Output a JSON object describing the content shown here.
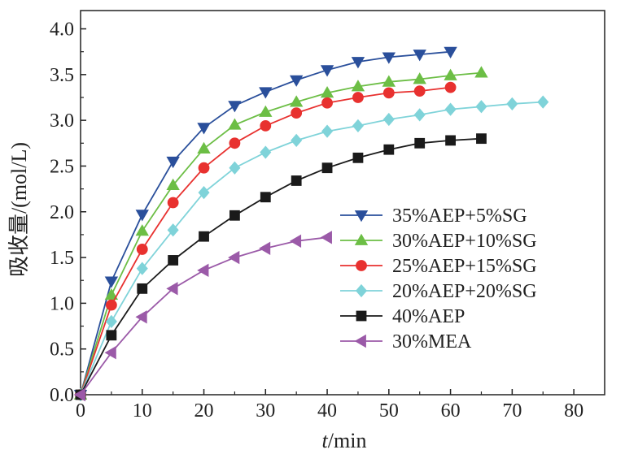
{
  "chart_data": {
    "type": "line",
    "xlabel_italic": "t",
    "xlabel_unit": "/min",
    "ylabel": "吸收量/(mol/L)",
    "xlim": [
      0,
      85
    ],
    "ylim": [
      0,
      4.2
    ],
    "x_ticks": [
      "0",
      "10",
      "20",
      "30",
      "40",
      "50",
      "60",
      "70",
      "80"
    ],
    "y_ticks": [
      "0.0",
      "0.5",
      "1.0",
      "1.5",
      "2.0",
      "2.5",
      "3.0",
      "3.5",
      "4.0"
    ],
    "x_tick_values": [
      0,
      10,
      20,
      30,
      40,
      50,
      60,
      70,
      80
    ],
    "y_tick_values": [
      0,
      0.5,
      1.0,
      1.5,
      2.0,
      2.5,
      3.0,
      3.5,
      4.0
    ],
    "legend_position": "right-center",
    "series": [
      {
        "name": "35%AEP+5%SG",
        "color": "#2a4f9b",
        "marker": "triangle-down",
        "x": [
          0,
          5,
          10,
          15,
          20,
          25,
          30,
          35,
          40,
          45,
          50,
          55,
          60
        ],
        "y": [
          0,
          1.24,
          1.97,
          2.55,
          2.92,
          3.16,
          3.31,
          3.44,
          3.55,
          3.64,
          3.69,
          3.72,
          3.75
        ]
      },
      {
        "name": "30%AEP+10%SG",
        "color": "#6cbe45",
        "marker": "triangle-up",
        "x": [
          0,
          5,
          10,
          15,
          20,
          25,
          30,
          35,
          40,
          45,
          50,
          55,
          60,
          65
        ],
        "y": [
          0,
          1.09,
          1.79,
          2.29,
          2.69,
          2.95,
          3.09,
          3.2,
          3.3,
          3.37,
          3.42,
          3.45,
          3.49,
          3.52
        ]
      },
      {
        "name": "25%AEP+15%SG",
        "color": "#e8312f",
        "marker": "circle",
        "x": [
          0,
          5,
          10,
          15,
          20,
          25,
          30,
          35,
          40,
          45,
          50,
          55,
          60
        ],
        "y": [
          0,
          0.98,
          1.59,
          2.1,
          2.48,
          2.75,
          2.94,
          3.08,
          3.19,
          3.25,
          3.3,
          3.32,
          3.36
        ]
      },
      {
        "name": "20%AEP+20%SG",
        "color": "#7fd3d9",
        "marker": "diamond",
        "x": [
          0,
          5,
          10,
          15,
          20,
          25,
          30,
          35,
          40,
          45,
          50,
          55,
          60,
          65,
          70,
          75
        ],
        "y": [
          0,
          0.8,
          1.38,
          1.8,
          2.21,
          2.48,
          2.65,
          2.78,
          2.88,
          2.94,
          3.01,
          3.06,
          3.12,
          3.15,
          3.18,
          3.2
        ]
      },
      {
        "name": "40%AEP",
        "color": "#1a1a1a",
        "marker": "square",
        "x": [
          0,
          5,
          10,
          15,
          20,
          25,
          30,
          35,
          40,
          45,
          50,
          55,
          60,
          65
        ],
        "y": [
          0,
          0.65,
          1.16,
          1.47,
          1.73,
          1.96,
          2.16,
          2.34,
          2.48,
          2.59,
          2.68,
          2.75,
          2.78,
          2.8
        ]
      },
      {
        "name": "30%MEA",
        "color": "#9b5aa8",
        "marker": "triangle-left",
        "x": [
          0,
          5,
          10,
          15,
          20,
          25,
          30,
          35,
          40
        ],
        "y": [
          0,
          0.46,
          0.85,
          1.16,
          1.36,
          1.5,
          1.6,
          1.68,
          1.72
        ]
      }
    ]
  }
}
